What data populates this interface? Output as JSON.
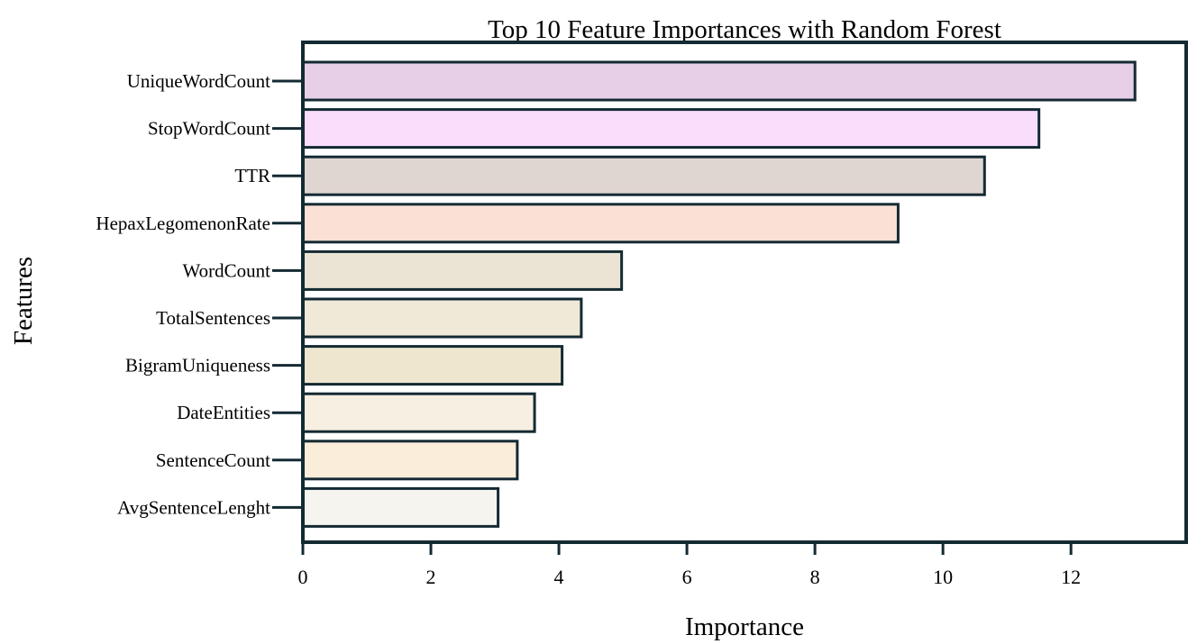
{
  "chart_data": {
    "type": "bar",
    "orientation": "horizontal",
    "title": "Top 10 Feature Importances with Random Forest",
    "xlabel": "Importance",
    "ylabel": "Features",
    "xlim": [
      0,
      13.8
    ],
    "xticks": [
      "0",
      "2",
      "4",
      "6",
      "8",
      "10",
      "12"
    ],
    "grid": false,
    "categories": [
      "UniqueWordCount",
      "StopWordCount",
      "TTR",
      "HepaxLegomenonRate",
      "WordCount",
      "TotalSentences",
      "BigramUniqueness",
      "DateEntities",
      "SentenceCount",
      "AvgSentenceLenght"
    ],
    "values": [
      13.0,
      11.5,
      10.65,
      9.3,
      4.98,
      4.35,
      4.05,
      3.62,
      3.35,
      3.05
    ],
    "colors": [
      "#e8cfe8",
      "#fadcfb",
      "#e0d6d1",
      "#fbe0d6",
      "#ebe4d4",
      "#f0e9d8",
      "#efe6cf",
      "#f7efe2",
      "#faeedb",
      "#f6f4ef"
    ],
    "edge_color": "#142a33"
  }
}
